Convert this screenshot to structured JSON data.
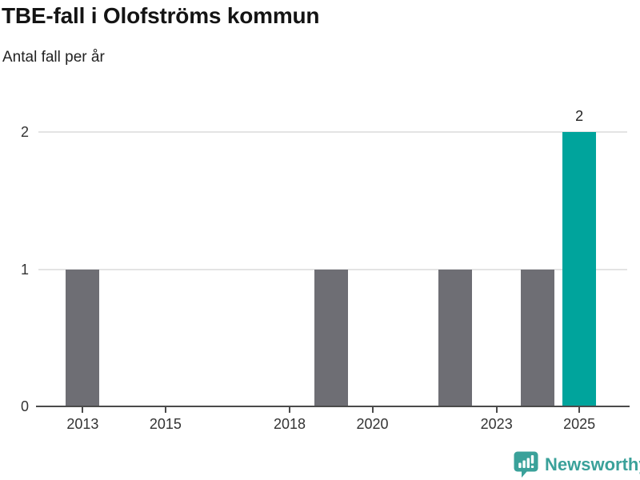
{
  "header": {
    "title": "TBE-fall i Olofströms kommun",
    "subtitle": "Antal fall per år"
  },
  "chart_data": {
    "type": "bar",
    "title": "TBE-fall i Olofströms kommun",
    "subtitle": "Antal fall per år",
    "x": [
      2013,
      2014,
      2015,
      2016,
      2017,
      2018,
      2019,
      2020,
      2021,
      2022,
      2023,
      2024,
      2025
    ],
    "values": [
      1,
      0,
      0,
      0,
      0,
      0,
      1,
      0,
      0,
      1,
      0,
      1,
      2
    ],
    "xticks": [
      2013,
      2015,
      2018,
      2020,
      2023,
      2025
    ],
    "yticks": [
      0,
      1,
      2
    ],
    "ylim": [
      0,
      2
    ],
    "grid": "horizontal",
    "legend": "none",
    "bar_color": "#6e6e74",
    "highlight_color": "#00a49c",
    "highlight_x": 2025,
    "value_labels": [
      {
        "x": 2025,
        "text": "2"
      }
    ]
  },
  "colors": {
    "grid": "#e4e4e4",
    "axis": "#4b4b4b",
    "tick_text": "#333333",
    "value_text": "#222222",
    "brand": "#3aa19a"
  },
  "footer": {
    "brand": "Newsworthy"
  }
}
